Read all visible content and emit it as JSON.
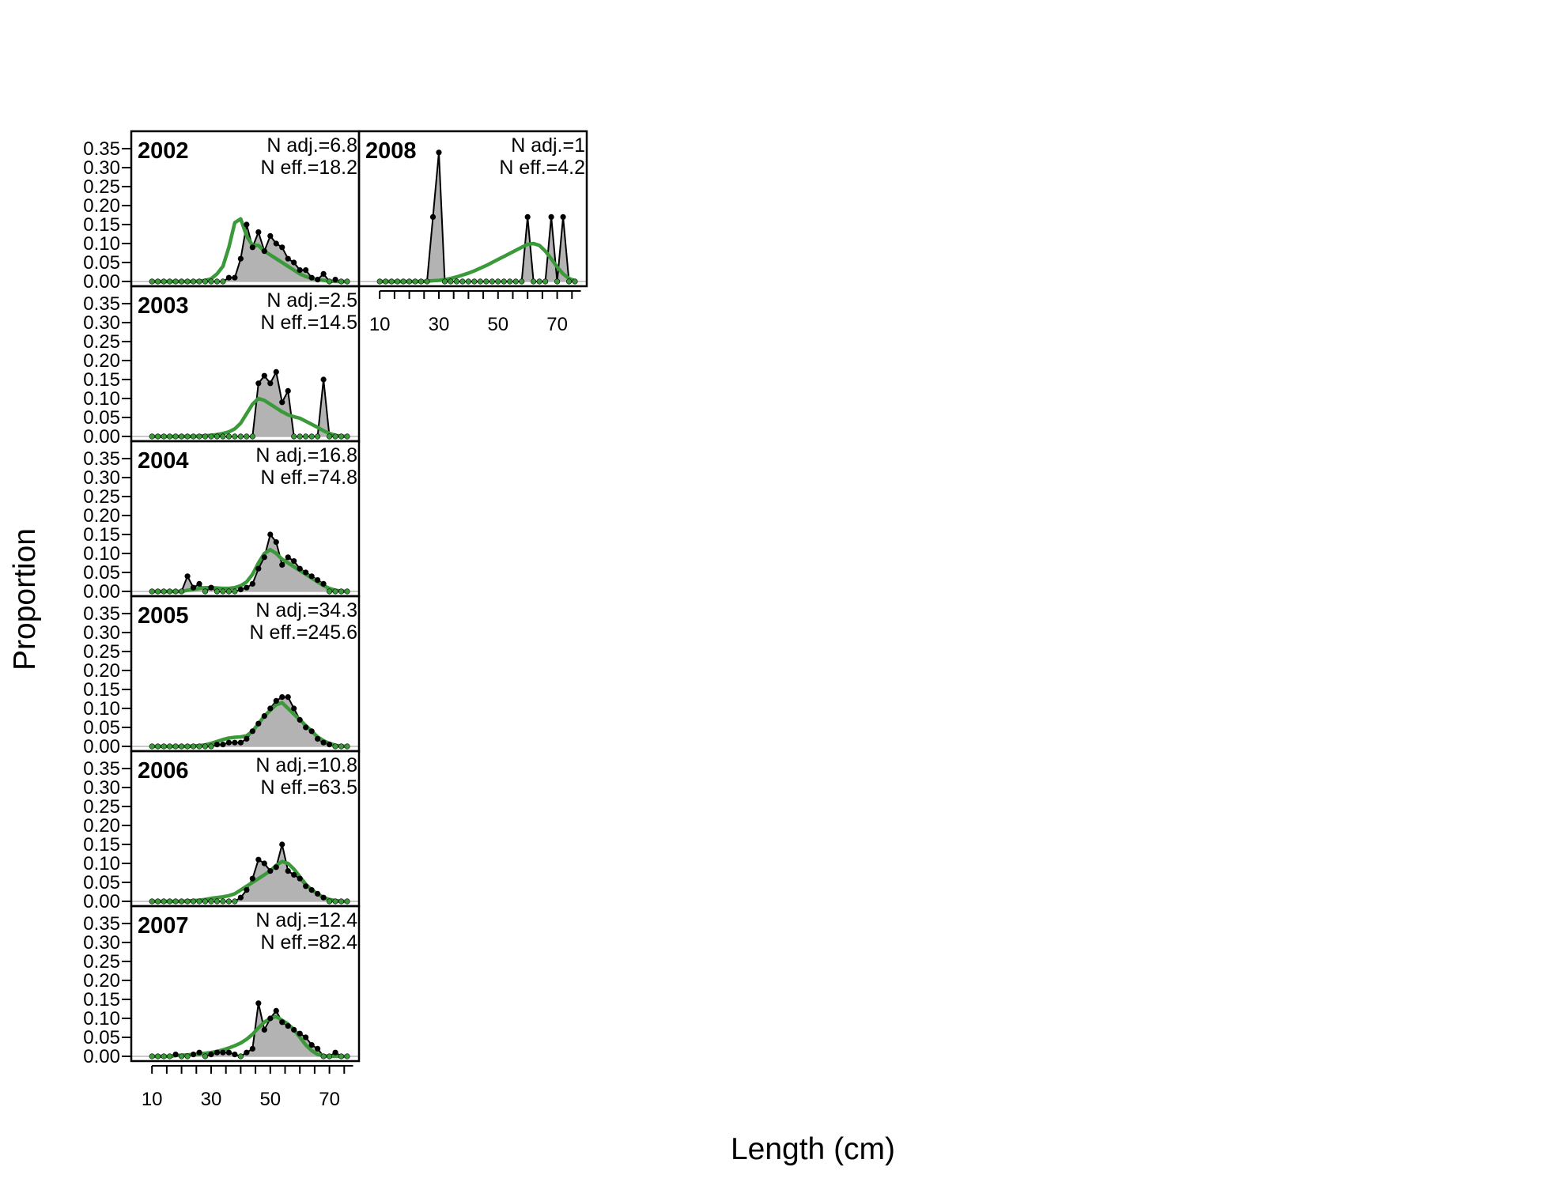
{
  "chart_data": {
    "type": "area",
    "xlabel": "Length (cm)",
    "ylabel": "Proportion",
    "xlim": [
      3,
      80
    ],
    "ylim": [
      0,
      0.375
    ],
    "x_ticks": [
      10,
      30,
      50,
      70
    ],
    "y_ticks": [
      "0.00",
      "0.05",
      "0.10",
      "0.15",
      "0.20",
      "0.25",
      "0.30",
      "0.35"
    ],
    "colors": {
      "observed_fill": "#b3b3b3",
      "observed_line": "#000000",
      "expected_line": "#3a9a3a"
    },
    "x": [
      10,
      12,
      14,
      16,
      18,
      20,
      22,
      24,
      26,
      28,
      30,
      32,
      34,
      36,
      38,
      40,
      42,
      44,
      46,
      48,
      50,
      52,
      54,
      56,
      58,
      60,
      62,
      64,
      66,
      68,
      70,
      72,
      74,
      76
    ],
    "panels": [
      {
        "year": "2002",
        "n_adj": "N adj.=6.8",
        "n_eff": "N eff.=18.2",
        "observed": [
          0,
          0,
          0,
          0,
          0,
          0,
          0,
          0,
          0,
          0,
          0,
          0,
          0,
          0.01,
          0.01,
          0.06,
          0.15,
          0.09,
          0.13,
          0.08,
          0.12,
          0.1,
          0.09,
          0.06,
          0.05,
          0.03,
          0.03,
          0.01,
          0.005,
          0.02,
          0,
          0.005,
          0,
          0
        ],
        "expected": [
          0,
          0,
          0,
          0,
          0,
          0,
          0,
          0,
          0.001,
          0.003,
          0.007,
          0.02,
          0.04,
          0.09,
          0.155,
          0.165,
          0.12,
          0.095,
          0.095,
          0.08,
          0.07,
          0.06,
          0.05,
          0.04,
          0.03,
          0.02,
          0.013,
          0.008,
          0.005,
          0.003,
          0.001,
          0,
          0,
          0
        ]
      },
      {
        "year": "2003",
        "n_adj": "N adj.=2.5",
        "n_eff": "N eff.=14.5",
        "observed": [
          0,
          0,
          0,
          0,
          0,
          0,
          0,
          0,
          0,
          0,
          0,
          0,
          0,
          0,
          0,
          0,
          0,
          0,
          0.14,
          0.16,
          0.14,
          0.17,
          0.09,
          0.12,
          0,
          0,
          0,
          0,
          0,
          0.15,
          0,
          0,
          0,
          0
        ],
        "expected": [
          0,
          0,
          0,
          0,
          0,
          0,
          0,
          0,
          0.001,
          0.002,
          0.003,
          0.005,
          0.008,
          0.012,
          0.02,
          0.035,
          0.06,
          0.085,
          0.1,
          0.095,
          0.085,
          0.075,
          0.065,
          0.057,
          0.052,
          0.048,
          0.04,
          0.032,
          0.024,
          0.015,
          0.008,
          0.003,
          0.001,
          0
        ]
      },
      {
        "year": "2004",
        "n_adj": "N adj.=16.8",
        "n_eff": "N eff.=74.8",
        "observed": [
          0,
          0,
          0,
          0,
          0,
          0,
          0.04,
          0.01,
          0.02,
          0,
          0.01,
          0,
          0,
          0,
          0,
          0.005,
          0.01,
          0.02,
          0.06,
          0.09,
          0.15,
          0.13,
          0.07,
          0.09,
          0.08,
          0.06,
          0.05,
          0.04,
          0.03,
          0.02,
          0,
          0,
          0,
          0
        ],
        "expected": [
          0,
          0,
          0,
          0,
          0,
          0,
          0.003,
          0.005,
          0.008,
          0.01,
          0.01,
          0.009,
          0.008,
          0.008,
          0.01,
          0.015,
          0.025,
          0.045,
          0.075,
          0.1,
          0.11,
          0.1,
          0.085,
          0.075,
          0.065,
          0.055,
          0.045,
          0.035,
          0.025,
          0.015,
          0.008,
          0.003,
          0.001,
          0
        ]
      },
      {
        "year": "2005",
        "n_adj": "N adj.=34.3",
        "n_eff": "N eff.=245.6",
        "observed": [
          0,
          0,
          0,
          0,
          0,
          0,
          0,
          0,
          0,
          0,
          0,
          0.005,
          0.005,
          0.01,
          0.01,
          0.01,
          0.02,
          0.04,
          0.06,
          0.08,
          0.1,
          0.12,
          0.13,
          0.13,
          0.1,
          0.07,
          0.05,
          0.04,
          0.02,
          0.01,
          0.005,
          0,
          0,
          0
        ],
        "expected": [
          0,
          0,
          0,
          0,
          0,
          0,
          0,
          0.001,
          0.002,
          0.004,
          0.008,
          0.013,
          0.018,
          0.022,
          0.024,
          0.025,
          0.028,
          0.04,
          0.06,
          0.08,
          0.095,
          0.11,
          0.115,
          0.1,
          0.085,
          0.07,
          0.055,
          0.04,
          0.025,
          0.015,
          0.008,
          0.003,
          0.001,
          0
        ]
      },
      {
        "year": "2006",
        "n_adj": "N adj.=10.8",
        "n_eff": "N eff.=63.5",
        "observed": [
          0,
          0,
          0,
          0,
          0,
          0,
          0,
          0,
          0,
          0,
          0,
          0,
          0,
          0,
          0,
          0.01,
          0.03,
          0.06,
          0.11,
          0.1,
          0.08,
          0.09,
          0.15,
          0.08,
          0.07,
          0.06,
          0.04,
          0.03,
          0.02,
          0.01,
          0,
          0,
          0,
          0
        ],
        "expected": [
          0,
          0,
          0,
          0,
          0,
          0,
          0.001,
          0.002,
          0.003,
          0.005,
          0.008,
          0.01,
          0.012,
          0.015,
          0.02,
          0.03,
          0.04,
          0.05,
          0.06,
          0.07,
          0.08,
          0.095,
          0.105,
          0.1,
          0.085,
          0.065,
          0.045,
          0.03,
          0.02,
          0.01,
          0.005,
          0.002,
          0,
          0
        ]
      },
      {
        "year": "2007",
        "n_adj": "N adj.=12.4",
        "n_eff": "N eff.=82.4",
        "observed": [
          0,
          0,
          0,
          0,
          0.005,
          0,
          0,
          0.005,
          0.01,
          0,
          0.005,
          0.01,
          0.01,
          0.01,
          0.005,
          0,
          0.01,
          0.02,
          0.14,
          0.07,
          0.1,
          0.12,
          0.09,
          0.08,
          0.07,
          0.06,
          0.05,
          0.03,
          0.02,
          0,
          0,
          0.01,
          0,
          0
        ],
        "expected": [
          0,
          0,
          0,
          0,
          0.002,
          0.003,
          0.004,
          0.005,
          0.006,
          0.008,
          0.01,
          0.013,
          0.017,
          0.022,
          0.028,
          0.035,
          0.045,
          0.058,
          0.075,
          0.09,
          0.1,
          0.105,
          0.095,
          0.085,
          0.07,
          0.05,
          0.03,
          0.015,
          0.005,
          0.002,
          0,
          0,
          0,
          0
        ]
      },
      {
        "year": "2008",
        "n_adj": "N adj.=1",
        "n_eff": "N eff.=4.2",
        "observed": [
          0,
          0,
          0,
          0,
          0,
          0,
          0,
          0,
          0,
          0.17,
          0.34,
          0,
          0,
          0,
          0,
          0,
          0,
          0,
          0,
          0,
          0,
          0,
          0,
          0,
          0,
          0.17,
          0,
          0,
          0,
          0.17,
          0,
          0.17,
          0,
          0
        ],
        "expected": [
          0,
          0,
          0,
          0,
          0,
          0,
          0,
          0,
          0.001,
          0.002,
          0.003,
          0.005,
          0.008,
          0.012,
          0.017,
          0.022,
          0.028,
          0.035,
          0.042,
          0.05,
          0.058,
          0.066,
          0.074,
          0.082,
          0.09,
          0.098,
          0.1,
          0.095,
          0.08,
          0.06,
          0.038,
          0.02,
          0.008,
          0.002
        ]
      }
    ]
  }
}
